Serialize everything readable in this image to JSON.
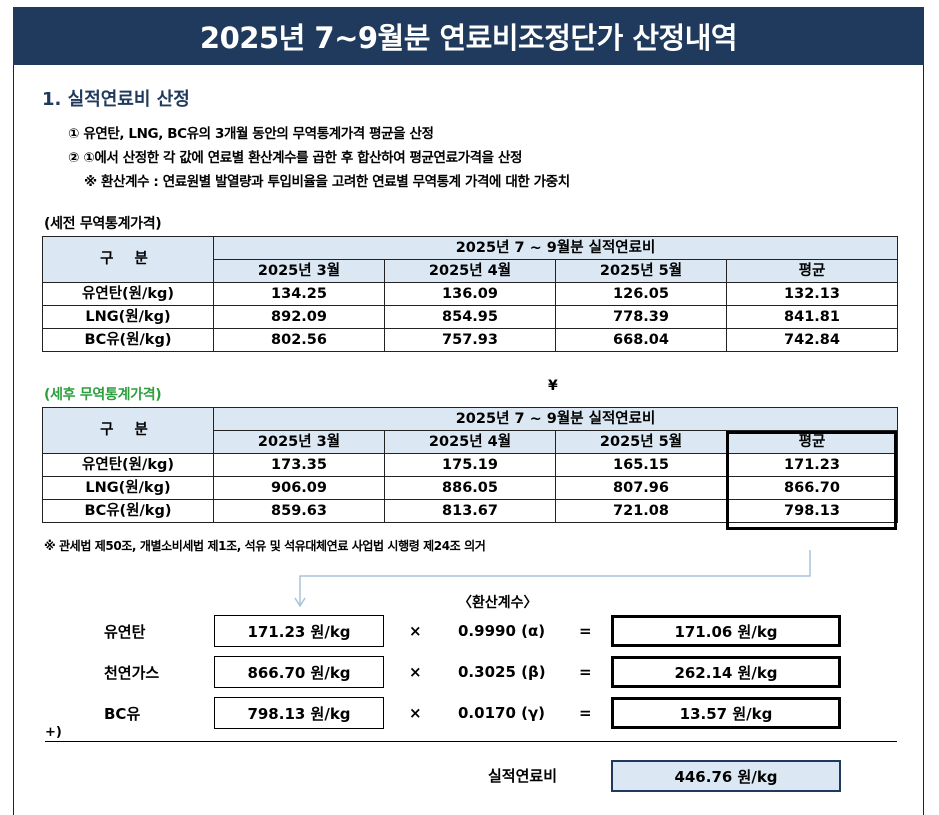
{
  "title": "2025년 7~9월분 연료비조정단가 산정내역",
  "section": {
    "title": "1. 실적연료비 산정",
    "notes": [
      "① 유연탄, LNG, BC유의 3개월 동안의 무역통계가격 평균을 산정",
      "② ①에서 산정한 각 값에 연료별 환산계수를 곱한 후 합산하여 평균연료가격을 산정",
      "※ 환산계수 : 연료원별 발열량과 투입비율을 고려한 연료별 무역통계 가격에 대한 가중치"
    ]
  },
  "pretax": {
    "label": "(세전 무역통계가격)",
    "header_category": "구 분",
    "header_group": "2025년 7 ~ 9월분 실적연료비",
    "columns": [
      "2025년 3월",
      "2025년 4월",
      "2025년 5월",
      "평균"
    ],
    "rows": [
      {
        "name": "유연탄(원/kg)",
        "values": [
          "134.25",
          "136.09",
          "126.05",
          "132.13"
        ]
      },
      {
        "name": "LNG(원/kg)",
        "values": [
          "892.09",
          "854.95",
          "778.39",
          "841.81"
        ]
      },
      {
        "name": "BC유(원/kg)",
        "values": [
          "802.56",
          "757.93",
          "668.04",
          "742.84"
        ]
      }
    ]
  },
  "arrow_symbol": "¥",
  "posttax": {
    "label": "(세후 무역통계가격)",
    "label_color": "#2e9e3e",
    "header_category": "구 분",
    "header_group": "2025년 7 ~ 9월분 실적연료비",
    "columns": [
      "2025년 3월",
      "2025년 4월",
      "2025년 5월",
      "평균"
    ],
    "rows": [
      {
        "name": "유연탄(원/kg)",
        "values": [
          "173.35",
          "175.19",
          "165.15",
          "171.23"
        ]
      },
      {
        "name": "LNG(원/kg)",
        "values": [
          "906.09",
          "886.05",
          "807.96",
          "866.70"
        ]
      },
      {
        "name": "BC유(원/kg)",
        "values": [
          "859.63",
          "813.67",
          "721.08",
          "798.13"
        ]
      }
    ]
  },
  "legal_note": "※ 관세법 제50조, 개별소비세법 제1조, 석유 및 석유대체연료 사업법 시행령 제24조 의거",
  "calc": {
    "coef_header": "〈환산계수〉",
    "times": "×",
    "equals": "=",
    "rows": [
      {
        "name": "유연탄",
        "value": "171.23 원/kg",
        "coef": "0.9990 (α)",
        "result": "171.06 원/kg"
      },
      {
        "name": "천연가스",
        "value": "866.70 원/kg",
        "coef": "0.3025 (β)",
        "result": "262.14 원/kg"
      },
      {
        "name": "BC유",
        "value": "798.13 원/kg",
        "coef": "0.0170 (γ)",
        "result": "13.57 원/kg"
      }
    ],
    "plus": "+)",
    "total_label": "실적연료비",
    "total_value": "446.76 원/kg"
  },
  "colors": {
    "banner": "#1f3a5c",
    "header_fill": "#dbe8f3",
    "flow_line": "#a9c3dc"
  }
}
